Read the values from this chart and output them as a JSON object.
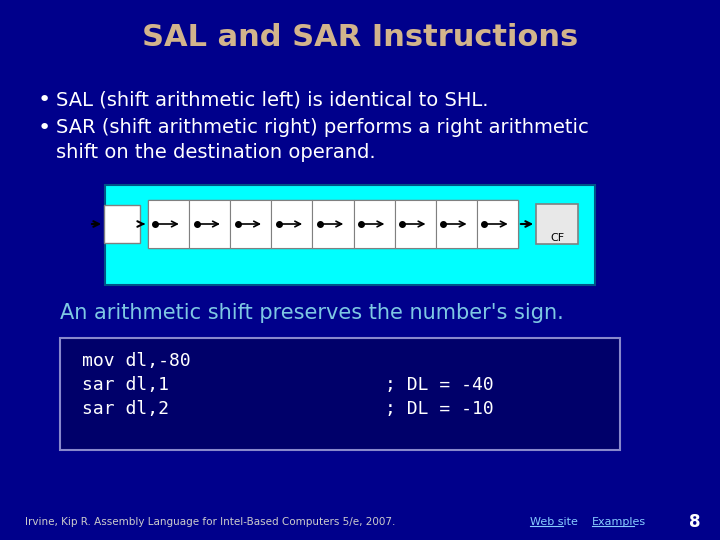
{
  "title": "SAL and SAR Instructions",
  "title_color": "#D2B48C",
  "bg_color": "#00008B",
  "bullet1": "SAL (shift arithmetic left) is identical to SHL.",
  "bullet2_line1": "SAR (shift arithmetic right) performs a right arithmetic",
  "bullet2_line2": "shift on the destination operand.",
  "diagram_bg": "#00FFFF",
  "highlight_text": "An arithmetic shift preserves the number's sign.",
  "code_line1": "mov dl,-80",
  "code_line2": "sar dl,1",
  "code_line3": "sar dl,2",
  "comment2": "; DL = -40",
  "comment3": "; DL = -10",
  "footer": "Irvine, Kip R. Assembly Language for Intel-Based Computers 5/e, 2007.",
  "link1": "Web site",
  "link2": "Examples",
  "page_num": "8",
  "text_color": "#FFFFFF",
  "highlight_color": "#7EC8E3",
  "code_bg": "#00006A",
  "code_border": "#8888CC"
}
